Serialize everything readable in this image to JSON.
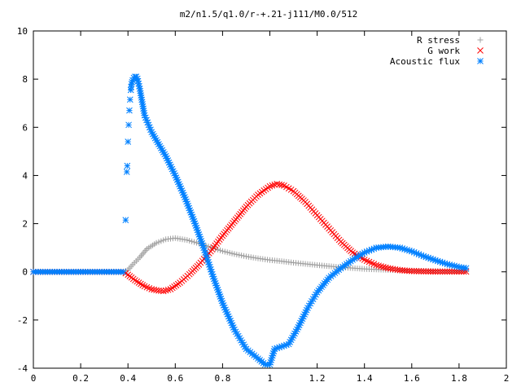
{
  "chart_data": {
    "type": "scatter",
    "title": "m2/n1.5/q1.0/r-+.21-j111/M0.0/512",
    "xlabel": "",
    "ylabel": "",
    "xlim": [
      0,
      2
    ],
    "ylim": [
      -4,
      10
    ],
    "x_ticks": [
      "0",
      "0.2",
      "0.4",
      "0.6",
      "0.8",
      "1",
      "1.2",
      "1.4",
      "1.6",
      "1.8",
      "2"
    ],
    "y_ticks": [
      "-4",
      "-2",
      "0",
      "2",
      "4",
      "6",
      "8",
      "10"
    ],
    "grid": false,
    "legend_position": "top-right",
    "series": [
      {
        "name": "R stress",
        "marker": "plus",
        "color": "#a0a0a0",
        "points": [
          [
            0.0,
            0
          ],
          [
            0.1,
            0
          ],
          [
            0.2,
            0
          ],
          [
            0.3,
            0
          ],
          [
            0.38,
            0
          ],
          [
            0.4,
            0.08
          ],
          [
            0.42,
            0.3
          ],
          [
            0.45,
            0.6
          ],
          [
            0.48,
            0.95
          ],
          [
            0.52,
            1.2
          ],
          [
            0.56,
            1.35
          ],
          [
            0.6,
            1.4
          ],
          [
            0.65,
            1.32
          ],
          [
            0.7,
            1.18
          ],
          [
            0.75,
            1.02
          ],
          [
            0.8,
            0.86
          ],
          [
            0.85,
            0.74
          ],
          [
            0.9,
            0.64
          ],
          [
            0.95,
            0.56
          ],
          [
            1.0,
            0.49
          ],
          [
            1.05,
            0.44
          ],
          [
            1.1,
            0.38
          ],
          [
            1.15,
            0.33
          ],
          [
            1.2,
            0.28
          ],
          [
            1.3,
            0.19
          ],
          [
            1.4,
            0.12
          ],
          [
            1.5,
            0.08
          ],
          [
            1.6,
            0.05
          ],
          [
            1.7,
            0.03
          ],
          [
            1.8,
            0.01
          ],
          [
            1.83,
            0.01
          ]
        ]
      },
      {
        "name": "G work",
        "marker": "cross",
        "color": "#ff0000",
        "points": [
          [
            0.0,
            0
          ],
          [
            0.1,
            0
          ],
          [
            0.2,
            0
          ],
          [
            0.3,
            0
          ],
          [
            0.38,
            0
          ],
          [
            0.4,
            -0.12
          ],
          [
            0.43,
            -0.35
          ],
          [
            0.47,
            -0.6
          ],
          [
            0.5,
            -0.72
          ],
          [
            0.53,
            -0.78
          ],
          [
            0.55,
            -0.8
          ],
          [
            0.58,
            -0.72
          ],
          [
            0.62,
            -0.45
          ],
          [
            0.66,
            -0.1
          ],
          [
            0.7,
            0.3
          ],
          [
            0.75,
            0.85
          ],
          [
            0.8,
            1.5
          ],
          [
            0.85,
            2.1
          ],
          [
            0.9,
            2.7
          ],
          [
            0.95,
            3.2
          ],
          [
            1.0,
            3.55
          ],
          [
            1.03,
            3.65
          ],
          [
            1.06,
            3.58
          ],
          [
            1.1,
            3.35
          ],
          [
            1.15,
            2.9
          ],
          [
            1.2,
            2.35
          ],
          [
            1.25,
            1.8
          ],
          [
            1.3,
            1.25
          ],
          [
            1.35,
            0.8
          ],
          [
            1.4,
            0.5
          ],
          [
            1.45,
            0.28
          ],
          [
            1.5,
            0.15
          ],
          [
            1.55,
            0.07
          ],
          [
            1.6,
            0.03
          ],
          [
            1.7,
            0.01
          ],
          [
            1.8,
            0.01
          ],
          [
            1.83,
            0.01
          ]
        ]
      },
      {
        "name": "Acoustic flux",
        "marker": "star",
        "color": "#0080ff",
        "points": [
          [
            0.0,
            0
          ],
          [
            0.1,
            0
          ],
          [
            0.2,
            0
          ],
          [
            0.3,
            0
          ],
          [
            0.38,
            0
          ],
          [
            0.39,
            2.15
          ],
          [
            0.395,
            4.15
          ],
          [
            0.397,
            4.4
          ],
          [
            0.4,
            5.4
          ],
          [
            0.403,
            6.1
          ],
          [
            0.406,
            6.7
          ],
          [
            0.409,
            7.15
          ],
          [
            0.412,
            7.55
          ],
          [
            0.415,
            7.8
          ],
          [
            0.42,
            7.95
          ],
          [
            0.425,
            8.05
          ],
          [
            0.43,
            8.1
          ],
          [
            0.435,
            8.1
          ],
          [
            0.44,
            8.02
          ],
          [
            0.45,
            7.6
          ],
          [
            0.46,
            7.05
          ],
          [
            0.47,
            6.5
          ],
          [
            0.5,
            5.8
          ],
          [
            0.53,
            5.3
          ],
          [
            0.56,
            4.8
          ],
          [
            0.6,
            4.0
          ],
          [
            0.64,
            3.1
          ],
          [
            0.68,
            2.1
          ],
          [
            0.72,
            1.0
          ],
          [
            0.76,
            -0.2
          ],
          [
            0.8,
            -1.3
          ],
          [
            0.85,
            -2.4
          ],
          [
            0.9,
            -3.2
          ],
          [
            0.95,
            -3.6
          ],
          [
            0.98,
            -3.85
          ],
          [
            1.0,
            -3.85
          ],
          [
            1.02,
            -3.2
          ],
          [
            1.05,
            -3.1
          ],
          [
            1.08,
            -3.0
          ],
          [
            1.12,
            -2.3
          ],
          [
            1.16,
            -1.5
          ],
          [
            1.2,
            -0.85
          ],
          [
            1.25,
            -0.25
          ],
          [
            1.3,
            0.15
          ],
          [
            1.35,
            0.5
          ],
          [
            1.4,
            0.8
          ],
          [
            1.45,
            1.0
          ],
          [
            1.5,
            1.05
          ],
          [
            1.55,
            1.0
          ],
          [
            1.6,
            0.85
          ],
          [
            1.65,
            0.65
          ],
          [
            1.7,
            0.48
          ],
          [
            1.75,
            0.32
          ],
          [
            1.8,
            0.2
          ],
          [
            1.83,
            0.15
          ]
        ]
      }
    ]
  }
}
